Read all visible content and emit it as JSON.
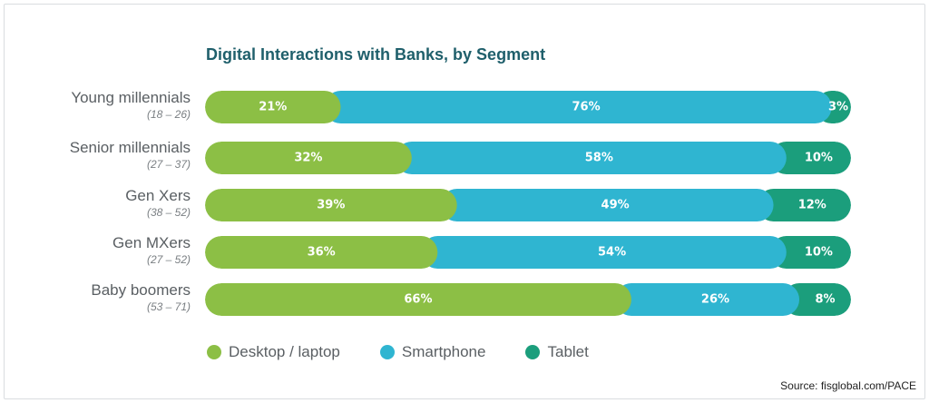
{
  "chart_data": {
    "type": "bar",
    "orientation": "horizontal",
    "stacked": true,
    "title": "Digital Interactions with Banks, by Segment",
    "categories": [
      "Young millennials",
      "Senior millennials",
      "Gen Xers",
      "Gen MXers",
      "Baby boomers"
    ],
    "category_subtitles": [
      "(18 – 26)",
      "(27 – 37)",
      "(38 – 52)",
      "(27 – 52)",
      "(53 – 71)"
    ],
    "series": [
      {
        "name": "Desktop / laptop",
        "values": [
          21,
          32,
          39,
          36,
          66
        ],
        "labels": [
          "21%",
          "32%",
          "39%",
          "36%",
          "66%"
        ]
      },
      {
        "name": "Smartphone",
        "values": [
          76,
          58,
          49,
          54,
          26
        ],
        "labels": [
          "76%",
          "58%",
          "49%",
          "54%",
          "26%"
        ]
      },
      {
        "name": "Tablet",
        "values": [
          3,
          10,
          12,
          10,
          8
        ],
        "labels": [
          "3%",
          "10%",
          "12%",
          "10%",
          "8%"
        ]
      }
    ],
    "xlim": [
      0,
      100
    ],
    "grid": false,
    "legend_position": "bottom-left",
    "colors": {
      "Desktop / laptop": "#8cbf45",
      "Smartphone": "#2fb5d1",
      "Tablet": "#1b9e7c"
    }
  },
  "source": "Source: fisglobal.com/PACE"
}
